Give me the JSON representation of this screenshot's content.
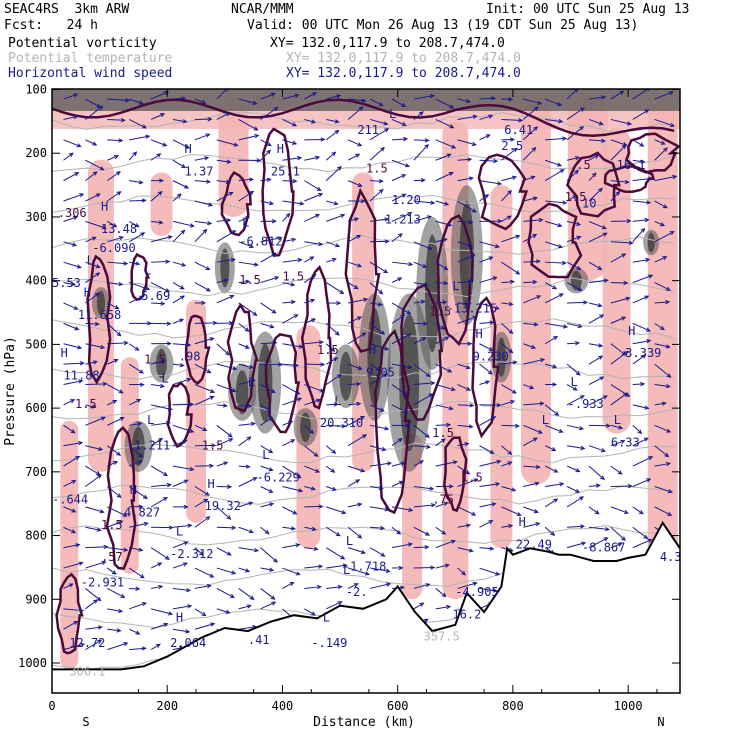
{
  "header": {
    "model": "SEAC4RS  3km ARW",
    "org": "NCAR/MMM",
    "init": "Init: 00 UTC Sun 25 Aug 13",
    "fcst": "Fcst:   24 h",
    "valid": "Valid: 00 UTC Mon 26 Aug 13 (19 CDT Sun 25 Aug 13)",
    "fields": [
      {
        "label": "Potential vorticity",
        "xy": "XY= 132.0,117.9 to 208.7,474.0",
        "color": "#000000"
      },
      {
        "label": "Potential temperature",
        "xy": "XY= 132.0,117.9 to 208.7,474.0",
        "color": "#b4b4b4"
      },
      {
        "label": "Horizontal wind speed",
        "xy": "XY= 132.0,117.9 to 208.7,474.0",
        "color": "#1a1a8c"
      }
    ]
  },
  "colors": {
    "pv_contour": "#4a0a3c",
    "pv_fill": "#f4b4b4",
    "cloud_shade": "#555555",
    "wind_vector": "#1a1a8c",
    "theta": "#b4b4b4",
    "terrain": "#000000"
  },
  "chart_data": {
    "type": "cross-section",
    "xlabel": "Distance (km)",
    "ylabel": "Pressure (hPa)",
    "xlim": [
      0,
      1090
    ],
    "ylim": [
      1050,
      100
    ],
    "x_ticks": [
      0,
      200,
      400,
      600,
      800,
      1000
    ],
    "x_tick_labels": [
      "0",
      "200",
      "400",
      "600",
      "800",
      "1000"
    ],
    "y_ticks": [
      100,
      200,
      300,
      400,
      500,
      600,
      700,
      800,
      900,
      1000
    ],
    "y_tick_labels": [
      "100",
      "200",
      "300",
      "400",
      "500",
      "600",
      "700",
      "800",
      "900",
      "1000"
    ],
    "left_end_label": "S",
    "right_end_label": "N",
    "terrain": {
      "x": [
        0,
        40,
        80,
        120,
        160,
        200,
        220,
        260,
        300,
        340,
        380,
        420,
        460,
        500,
        540,
        580,
        600,
        630,
        660,
        700,
        720,
        750,
        780,
        790,
        800,
        830,
        860,
        880,
        900,
        940,
        980,
        1000,
        1030,
        1060,
        1090
      ],
      "p": [
        1010,
        1010,
        1010,
        1010,
        1005,
        990,
        980,
        960,
        945,
        950,
        935,
        925,
        930,
        910,
        915,
        900,
        880,
        920,
        950,
        940,
        890,
        920,
        880,
        820,
        830,
        820,
        825,
        830,
        830,
        840,
        840,
        835,
        830,
        780,
        820
      ]
    },
    "annotations": [
      {
        "text": "H",
        "x": 15,
        "p": 520,
        "color": "#1a1a8c"
      },
      {
        "text": "11.88",
        "x": 20,
        "p": 555,
        "color": "#1a1a8c"
      },
      {
        "text": "1.5",
        "x": 40,
        "p": 600,
        "color": "#4a0a3c"
      },
      {
        "text": "1.5",
        "x": 85,
        "p": 790,
        "color": "#4a0a3c"
      },
      {
        "text": ".57",
        "x": 85,
        "p": 840,
        "color": "#4a0a3c"
      },
      {
        "text": "-2.931",
        "x": 50,
        "p": 880,
        "color": "#1a1a8c"
      },
      {
        "text": "12.72",
        "x": 30,
        "p": 975,
        "color": "#1a1a8c"
      },
      {
        "text": "-.644",
        "x": 0,
        "p": 750,
        "color": "#1a1a8c"
      },
      {
        "text": "306.1",
        "x": 30,
        "p": 1020,
        "color": "#b4b4b4"
      },
      {
        "text": ".306",
        "x": 10,
        "p": 300,
        "color": "#4a0a3c"
      },
      {
        "text": "H",
        "x": 85,
        "p": 290,
        "color": "#1a1a8c"
      },
      {
        "text": "13.48",
        "x": 85,
        "p": 325,
        "color": "#1a1a8c"
      },
      {
        "text": "-6.090",
        "x": 70,
        "p": 355,
        "color": "#1a1a8c"
      },
      {
        "text": "L",
        "x": 60,
        "p": 375,
        "color": "#1a1a8c"
      },
      {
        "text": "5.53",
        "x": 0,
        "p": 410,
        "color": "#1a1a8c"
      },
      {
        "text": "H",
        "x": 55,
        "p": 425,
        "color": "#1a1a8c"
      },
      {
        "text": "11.658",
        "x": 45,
        "p": 460,
        "color": "#1a1a8c"
      },
      {
        "text": "L",
        "x": 160,
        "p": 390,
        "color": "#1a1a8c"
      },
      {
        "text": "5.69",
        "x": 155,
        "p": 430,
        "color": "#1a1a8c"
      },
      {
        "text": "H",
        "x": 230,
        "p": 200,
        "color": "#1a1a8c"
      },
      {
        "text": "1.37",
        "x": 230,
        "p": 235,
        "color": "#1a1a8c"
      },
      {
        "text": "H",
        "x": 390,
        "p": 200,
        "color": "#1a1a8c"
      },
      {
        "text": "25.1",
        "x": 380,
        "p": 235,
        "color": "#1a1a8c"
      },
      {
        "text": "L",
        "x": 330,
        "p": 315,
        "color": "#1a1a8c"
      },
      {
        "text": "-6.812",
        "x": 325,
        "p": 345,
        "color": "#1a1a8c"
      },
      {
        "text": "1.5",
        "x": 325,
        "p": 405,
        "color": "#4a0a3c"
      },
      {
        "text": "1.5",
        "x": 400,
        "p": 400,
        "color": "#4a0a3c"
      },
      {
        "text": "1.5",
        "x": 460,
        "p": 515,
        "color": "#4a0a3c"
      },
      {
        "text": "1.5",
        "x": 160,
        "p": 530,
        "color": "#4a0a3c"
      },
      {
        "text": ".98",
        "x": 220,
        "p": 525,
        "color": "#1a1a8c"
      },
      {
        "text": "L",
        "x": 190,
        "p": 560,
        "color": "#1a1a8c"
      },
      {
        "text": "L",
        "x": 165,
        "p": 625,
        "color": "#1a1a8c"
      },
      {
        "text": "-1.211",
        "x": 130,
        "p": 665,
        "color": "#1a1a8c"
      },
      {
        "text": "1.5",
        "x": 260,
        "p": 665,
        "color": "#4a0a3c"
      },
      {
        "text": "L",
        "x": 365,
        "p": 680,
        "color": "#1a1a8c"
      },
      {
        "text": "-6.229",
        "x": 355,
        "p": 715,
        "color": "#1a1a8c"
      },
      {
        "text": "H",
        "x": 135,
        "p": 735,
        "color": "#1a1a8c"
      },
      {
        "text": "4.827",
        "x": 125,
        "p": 770,
        "color": "#1a1a8c"
      },
      {
        "text": "H",
        "x": 270,
        "p": 725,
        "color": "#1a1a8c"
      },
      {
        "text": "19.32",
        "x": 265,
        "p": 760,
        "color": "#1a1a8c"
      },
      {
        "text": "L",
        "x": 215,
        "p": 800,
        "color": "#1a1a8c"
      },
      {
        "text": "-2.312",
        "x": 205,
        "p": 835,
        "color": "#1a1a8c"
      },
      {
        "text": "H",
        "x": 215,
        "p": 935,
        "color": "#1a1a8c"
      },
      {
        "text": "2.064",
        "x": 205,
        "p": 975,
        "color": "#1a1a8c"
      },
      {
        "text": ".41",
        "x": 340,
        "p": 970,
        "color": "#1a1a8c"
      },
      {
        "text": "L",
        "x": 470,
        "p": 935,
        "color": "#1a1a8c"
      },
      {
        "text": "-.149",
        "x": 450,
        "p": 975,
        "color": "#1a1a8c"
      },
      {
        "text": "L",
        "x": 340,
        "p": 565,
        "color": "#1a1a8c"
      },
      {
        "text": "L",
        "x": 490,
        "p": 595,
        "color": "#1a1a8c"
      },
      {
        "text": "20.310",
        "x": 465,
        "p": 630,
        "color": "#1a1a8c"
      },
      {
        "text": "H",
        "x": 550,
        "p": 515,
        "color": "#1a1a8c"
      },
      {
        "text": "9.05",
        "x": 545,
        "p": 550,
        "color": "#1a1a8c"
      },
      {
        "text": "1.20",
        "x": 590,
        "p": 280,
        "color": "#1a1a8c"
      },
      {
        "text": "-1.213",
        "x": 565,
        "p": 310,
        "color": "#1a1a8c"
      },
      {
        "text": "1.5",
        "x": 545,
        "p": 230,
        "color": "#4a0a3c"
      },
      {
        "text": "1.5",
        "x": 655,
        "p": 455,
        "color": "#4a0a3c"
      },
      {
        "text": "1.5",
        "x": 660,
        "p": 645,
        "color": "#4a0a3c"
      },
      {
        "text": "1.5",
        "x": 710,
        "p": 715,
        "color": "#4a0a3c"
      },
      {
        "text": ".75",
        "x": 660,
        "p": 750,
        "color": "#4a0a3c"
      },
      {
        "text": "L",
        "x": 695,
        "p": 415,
        "color": "#1a1a8c"
      },
      {
        "text": "-13.215",
        "x": 685,
        "p": 450,
        "color": "#1a1a8c"
      },
      {
        "text": "H",
        "x": 735,
        "p": 490,
        "color": "#1a1a8c"
      },
      {
        "text": "9.230",
        "x": 730,
        "p": 525,
        "color": "#1a1a8c"
      },
      {
        "text": "211",
        "x": 530,
        "p": 170,
        "color": "#1a1a8c"
      },
      {
        "text": "L",
        "x": 585,
        "p": 145,
        "color": "#1a1a8c"
      },
      {
        "text": "6.41",
        "x": 785,
        "p": 170,
        "color": "#1a1a8c"
      },
      {
        "text": "2.5",
        "x": 780,
        "p": 195,
        "color": "#1a1a8c"
      },
      {
        "text": "1.5",
        "x": 890,
        "p": 275,
        "color": "#4a0a3c"
      },
      {
        "text": "10",
        "x": 920,
        "p": 285,
        "color": "#1a1a8c"
      },
      {
        "text": ".5",
        "x": 910,
        "p": 225,
        "color": "#4a0a3c"
      },
      {
        "text": "16.1",
        "x": 980,
        "p": 225,
        "color": "#1a1a8c"
      },
      {
        "text": "L",
        "x": 900,
        "p": 565,
        "color": "#1a1a8c"
      },
      {
        "text": "-.933",
        "x": 895,
        "p": 600,
        "color": "#1a1a8c"
      },
      {
        "text": "L",
        "x": 975,
        "p": 625,
        "color": "#1a1a8c"
      },
      {
        "text": "6.33",
        "x": 970,
        "p": 660,
        "color": "#1a1a8c"
      },
      {
        "text": "H",
        "x": 1000,
        "p": 485,
        "color": "#1a1a8c"
      },
      {
        "text": "3.339",
        "x": 995,
        "p": 520,
        "color": "#1a1a8c"
      },
      {
        "text": "L",
        "x": 850,
        "p": 625,
        "color": "#1a1a8c"
      },
      {
        "text": "H",
        "x": 810,
        "p": 785,
        "color": "#1a1a8c"
      },
      {
        "text": "22.49",
        "x": 805,
        "p": 820,
        "color": "#1a1a8c"
      },
      {
        "text": "-8.867",
        "x": 920,
        "p": 825,
        "color": "#1a1a8c"
      },
      {
        "text": "4.3",
        "x": 1055,
        "p": 840,
        "color": "#1a1a8c"
      },
      {
        "text": "L",
        "x": 510,
        "p": 815,
        "color": "#1a1a8c"
      },
      {
        "text": "-1.718",
        "x": 505,
        "p": 855,
        "color": "#1a1a8c"
      },
      {
        "text": "L",
        "x": 505,
        "p": 860,
        "color": "#1a1a8c"
      },
      {
        "text": "-2.",
        "x": 510,
        "p": 895,
        "color": "#1a1a8c"
      },
      {
        "text": "-4.905",
        "x": 700,
        "p": 895,
        "color": "#1a1a8c"
      },
      {
        "text": "16.2",
        "x": 695,
        "p": 930,
        "color": "#1a1a8c"
      },
      {
        "text": "357.5",
        "x": 645,
        "p": 965,
        "color": "#b4b4b4"
      }
    ]
  }
}
